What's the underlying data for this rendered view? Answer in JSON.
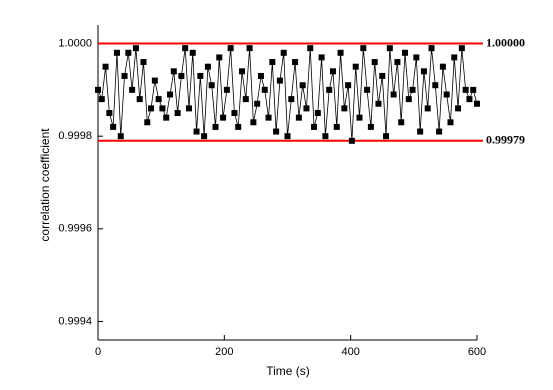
{
  "chart_data": {
    "type": "line",
    "x_label": "Time (s)",
    "y_label": "correlation coefficient",
    "xlim": [
      0,
      600
    ],
    "xticks": [
      0,
      200,
      400,
      600
    ],
    "ylim": [
      0.99936,
      1.00004
    ],
    "yticks": [
      0.9994,
      0.9996,
      0.9998,
      {
        "value": 1,
        "label": "1.0000"
      }
    ],
    "reference_lines": [
      {
        "value": 1,
        "label": "1.00000",
        "color": "#ff0000"
      },
      {
        "value": 0.99979,
        "label": "0.99979",
        "color": "#ff0000"
      }
    ],
    "series": [
      {
        "color": "#000000",
        "x": [
          0,
          6,
          12,
          18,
          24,
          30,
          36,
          42,
          48,
          54,
          60,
          66,
          72,
          78,
          84,
          90,
          96,
          102,
          108,
          114,
          120,
          126,
          132,
          138,
          144,
          150,
          156,
          162,
          168,
          174,
          180,
          186,
          192,
          198,
          204,
          210,
          216,
          222,
          228,
          234,
          240,
          246,
          252,
          258,
          264,
          270,
          276,
          282,
          288,
          294,
          300,
          306,
          312,
          318,
          324,
          330,
          336,
          342,
          348,
          354,
          360,
          366,
          372,
          378,
          384,
          390,
          396,
          402,
          408,
          414,
          420,
          426,
          432,
          438,
          444,
          450,
          456,
          462,
          468,
          474,
          480,
          486,
          492,
          498,
          504,
          510,
          516,
          522,
          528,
          534,
          540,
          546,
          552,
          558,
          564,
          570,
          576,
          582,
          588,
          594,
          600
        ],
        "values": [
          0.9999,
          0.99988,
          0.99995,
          0.99985,
          0.99982,
          0.99998,
          0.9998,
          0.99993,
          0.99998,
          0.9999,
          0.99999,
          0.99988,
          0.99996,
          0.99983,
          0.99986,
          0.99992,
          0.99988,
          0.99986,
          0.99984,
          0.99989,
          0.99994,
          0.99985,
          0.99993,
          0.99999,
          0.99986,
          0.99998,
          0.99981,
          0.99993,
          0.9998,
          0.99995,
          0.99991,
          0.99982,
          0.99997,
          0.99984,
          0.9999,
          0.99999,
          0.99985,
          0.99982,
          0.99994,
          0.99988,
          0.99999,
          0.99983,
          0.99987,
          0.99993,
          0.9999,
          0.99984,
          0.99996,
          0.99981,
          0.99992,
          0.99998,
          0.9998,
          0.99988,
          0.99996,
          0.99984,
          0.99991,
          0.99986,
          0.99999,
          0.99982,
          0.99985,
          0.99997,
          0.9998,
          0.9999,
          0.99994,
          0.99982,
          0.99998,
          0.99986,
          0.99991,
          0.99979,
          0.99995,
          0.99984,
          0.99999,
          0.9999,
          0.99982,
          0.99996,
          0.99987,
          0.99993,
          0.9998,
          0.99999,
          0.99989,
          0.99996,
          0.99983,
          0.99998,
          0.99988,
          0.9999,
          0.99997,
          0.99981,
          0.99994,
          0.99986,
          0.99999,
          0.99991,
          0.99981,
          0.99995,
          0.99989,
          0.99983,
          0.99997,
          0.99986,
          0.99999,
          0.9999,
          0.99988,
          0.9999,
          0.99987
        ]
      }
    ]
  }
}
